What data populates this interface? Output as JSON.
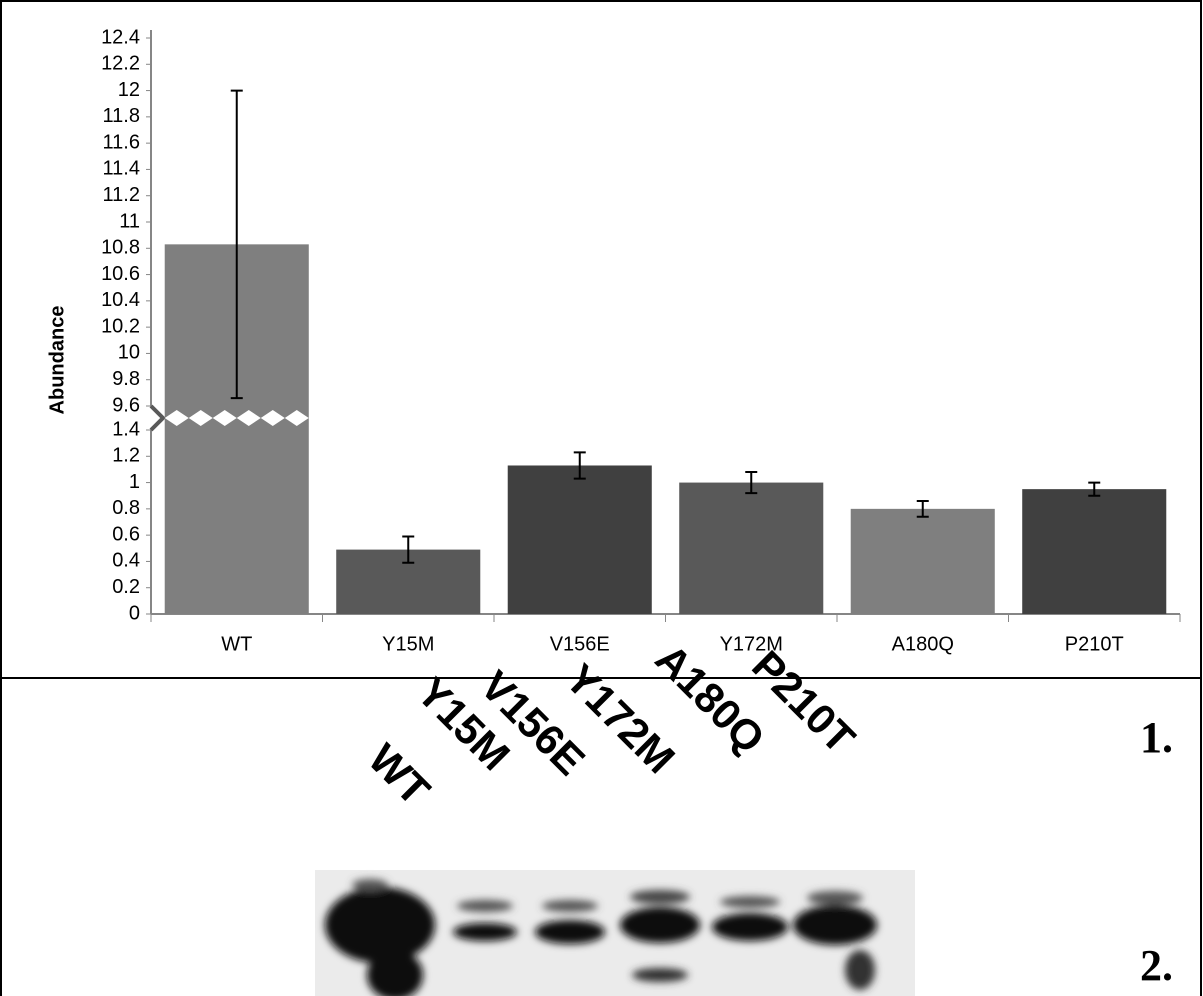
{
  "chart_data": {
    "type": "bar",
    "y_label": "Abundance",
    "categories": [
      "WT",
      "Y15M",
      "V156E",
      "Y172M",
      "A180Q",
      "P210T"
    ],
    "values": [
      10.83,
      0.49,
      1.13,
      1.0,
      0.8,
      0.95
    ],
    "errors": [
      1.17,
      0.1,
      0.1,
      0.08,
      0.06,
      0.05
    ],
    "colors": [
      "#7f7f7f",
      "#595959",
      "#404040",
      "#595959",
      "#7f7f7f",
      "#404040"
    ],
    "ylim": [
      0,
      12.4
    ],
    "y_break": [
      1.4,
      9.6
    ],
    "yticks": [
      0,
      0.2,
      0.4,
      0.6,
      0.8,
      1,
      1.2,
      1.4,
      9.6,
      9.8,
      10,
      10.2,
      10.4,
      10.6,
      10.8,
      11,
      11.2,
      11.4,
      11.6,
      11.8,
      12,
      12.2,
      12.4
    ]
  },
  "panel_labels": [
    "1.",
    "2."
  ],
  "blot": {
    "lanes": [
      "WT",
      "Y15M",
      "V156E",
      "Y172M",
      "A180Q",
      "P210T"
    ]
  }
}
